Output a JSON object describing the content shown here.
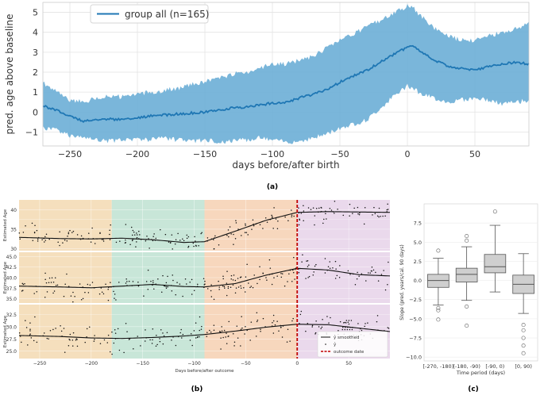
{
  "figure_labels": {
    "a": "(a)",
    "b": "(b)",
    "c": "(c)"
  },
  "chart_data": [
    {
      "id": "a",
      "type": "area",
      "title": "",
      "xlabel": "days before/after birth",
      "ylabel": "pred. age above baseline",
      "xlim": [
        -270,
        90
      ],
      "ylim": [
        -1.7,
        5.5
      ],
      "xticks": [
        -250,
        -200,
        -150,
        -100,
        -50,
        0,
        50
      ],
      "xtick_labels": [
        "−250",
        "−200",
        "−150",
        "−100",
        "−50",
        "0",
        "50"
      ],
      "yticks": [
        -1,
        0,
        1,
        2,
        3,
        4,
        5
      ],
      "ytick_labels": [
        "−1",
        "0",
        "1",
        "2",
        "3",
        "4",
        "5"
      ],
      "grid": true,
      "legend": {
        "placement": "top-left",
        "entries": [
          "group all (n=165)"
        ]
      },
      "series": [
        {
          "name": "group all (n=165)",
          "color": "#1f77b4",
          "band_color": "#6baed6",
          "x": [
            -270,
            -260,
            -250,
            -240,
            -230,
            -220,
            -210,
            -200,
            -190,
            -180,
            -170,
            -160,
            -150,
            -140,
            -130,
            -120,
            -110,
            -100,
            -90,
            -80,
            -70,
            -60,
            -50,
            -40,
            -30,
            -20,
            -10,
            0,
            5,
            10,
            20,
            30,
            40,
            50,
            60,
            70,
            80,
            90
          ],
          "mean": [
            0.3,
            0.1,
            -0.2,
            -0.45,
            -0.4,
            -0.35,
            -0.38,
            -0.3,
            -0.2,
            -0.15,
            -0.1,
            -0.05,
            0.0,
            0.1,
            0.2,
            0.25,
            0.35,
            0.45,
            0.5,
            0.7,
            0.9,
            1.1,
            1.5,
            1.8,
            2.1,
            2.5,
            2.9,
            3.25,
            3.3,
            3.0,
            2.6,
            2.3,
            2.2,
            2.1,
            2.3,
            2.4,
            2.5,
            2.4
          ],
          "lower": [
            -0.8,
            -0.9,
            -1.2,
            -1.2,
            -1.4,
            -1.45,
            -1.4,
            -1.35,
            -1.4,
            -1.3,
            -1.4,
            -1.5,
            -1.4,
            -1.5,
            -1.45,
            -1.4,
            -1.3,
            -1.4,
            -1.5,
            -1.45,
            -1.3,
            -1.1,
            -0.8,
            -0.6,
            -0.4,
            0.2,
            0.8,
            1.3,
            1.2,
            0.9,
            0.7,
            0.5,
            0.6,
            0.7,
            0.6,
            0.4,
            0.5,
            0.6
          ],
          "upper": [
            1.5,
            1.0,
            0.6,
            0.5,
            0.7,
            0.8,
            0.75,
            0.9,
            1.0,
            1.1,
            1.2,
            1.4,
            1.5,
            1.7,
            1.9,
            2.0,
            2.2,
            2.4,
            2.4,
            2.6,
            2.8,
            3.2,
            3.6,
            3.9,
            4.3,
            4.6,
            5.0,
            5.3,
            5.2,
            4.8,
            4.2,
            3.8,
            3.6,
            3.6,
            3.8,
            4.0,
            4.2,
            4.4
          ]
        }
      ]
    },
    {
      "id": "b",
      "type": "scatter",
      "xlabel": "Days before/after outcome",
      "ylabel": "Estimated Age",
      "xlim": [
        -270,
        90
      ],
      "xticks": [
        -250,
        -200,
        -150,
        -100,
        -50,
        0,
        50
      ],
      "xtick_labels": [
        "−250",
        "−200",
        "−150",
        "−100",
        "−50",
        "0",
        "50"
      ],
      "phase_bands": [
        {
          "from": -270,
          "to": -180,
          "color": "#f5dfbd"
        },
        {
          "from": -180,
          "to": -90,
          "color": "#c8e6d8"
        },
        {
          "from": -90,
          "to": 0,
          "color": "#f7d7bd"
        },
        {
          "from": 0,
          "to": 90,
          "color": "#ead9ec"
        }
      ],
      "outcome_line_x": 0,
      "legend": {
        "placement": "bottom-right",
        "entries": [
          "ŷ smoothed",
          "ŷ",
          "outcome date"
        ]
      },
      "subplots": [
        {
          "ylim": [
            29.5,
            42.5
          ],
          "yticks": [
            30,
            32.5,
            35,
            37.5,
            40
          ],
          "ytick_labels": [
            "30",
            "",
            "35",
            "",
            "40"
          ],
          "smooth_x": [
            -270,
            -230,
            -200,
            -170,
            -140,
            -110,
            -90,
            -60,
            -30,
            0,
            30,
            60,
            90
          ],
          "smooth_y": [
            32.9,
            32.6,
            32.5,
            32.7,
            32.3,
            31.6,
            31.8,
            34.5,
            37.3,
            39.3,
            39.5,
            39.4,
            39.3
          ],
          "seed": 11,
          "spread": 3.0
        },
        {
          "ylim": [
            34.0,
            46.0
          ],
          "yticks": [
            35.0,
            37.5,
            40.0,
            42.5,
            45.0
          ],
          "ytick_labels": [
            "35.0",
            "37.5",
            "40.0",
            "42.5",
            "45.0"
          ],
          "smooth_x": [
            -270,
            -230,
            -200,
            -170,
            -140,
            -110,
            -90,
            -60,
            -30,
            0,
            30,
            60,
            90
          ],
          "smooth_y": [
            38.0,
            37.8,
            37.6,
            38.0,
            38.4,
            37.9,
            37.8,
            38.6,
            40.6,
            42.2,
            41.8,
            40.7,
            40.4
          ],
          "seed": 23,
          "spread": 3.2
        },
        {
          "ylim": [
            23.5,
            34.5
          ],
          "yticks": [
            25.0,
            27.5,
            30.0,
            32.5
          ],
          "ytick_labels": [
            "25.0",
            "27.5",
            "30.0",
            "32.5"
          ],
          "smooth_x": [
            -270,
            -230,
            -200,
            -170,
            -140,
            -110,
            -90,
            -60,
            -30,
            0,
            30,
            60,
            90
          ],
          "smooth_y": [
            28.2,
            28.0,
            27.7,
            27.6,
            27.8,
            28.1,
            28.4,
            29.1,
            29.9,
            30.5,
            30.4,
            29.7,
            29.0
          ],
          "seed": 37,
          "spread": 2.8
        }
      ]
    },
    {
      "id": "c",
      "type": "box",
      "xlabel": "Time period (days)",
      "ylabel": "Slope (pred. years/cal. 90 days)",
      "ylim": [
        -10.5,
        10
      ],
      "yticks": [
        -10.0,
        -7.5,
        -5.0,
        -2.5,
        0.0,
        2.5,
        5.0,
        7.5
      ],
      "ytick_labels": [
        "−10.0",
        "−7.5",
        "−5.0",
        "−2.5",
        "0.0",
        "2.5",
        "5.0",
        "7.5"
      ],
      "categories": [
        "[-270, -180)",
        "[-180, -90)",
        "[-90, 0)",
        "[0, 90)"
      ],
      "boxes": [
        {
          "q1": -0.9,
          "median": 0.0,
          "q3": 0.8,
          "whisker_low": -3.2,
          "whisker_high": 2.9,
          "outliers": [
            3.9,
            -3.6,
            -3.9,
            -5.1
          ]
        },
        {
          "q1": -0.2,
          "median": 0.8,
          "q3": 1.6,
          "whisker_low": -2.6,
          "whisker_high": 4.4,
          "outliers": [
            5.8,
            5.2,
            -3.4,
            -5.9
          ]
        },
        {
          "q1": 1.0,
          "median": 1.8,
          "q3": 3.4,
          "whisker_low": -1.5,
          "whisker_high": 7.2,
          "outliers": [
            9.0
          ]
        },
        {
          "q1": -1.7,
          "median": -0.5,
          "q3": 0.7,
          "whisker_low": -4.3,
          "whisker_high": 3.5,
          "outliers": [
            -5.8,
            -6.5,
            -7.5,
            -8.5,
            -9.5
          ]
        }
      ],
      "box_color": "#cfcfcf"
    }
  ]
}
